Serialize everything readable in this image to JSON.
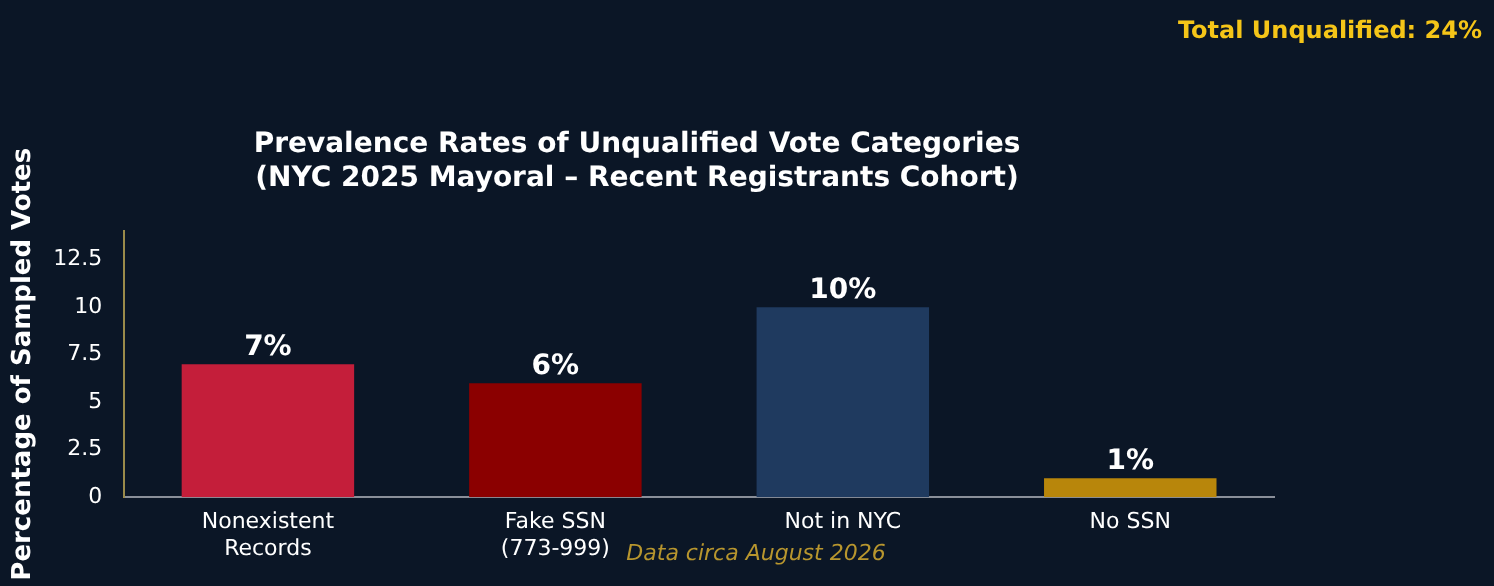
{
  "chart_data": {
    "type": "bar",
    "title": [
      "Prevalence Rates of Unqualified Vote Categories",
      "(NYC 2025 Mayoral – Recent Registrants Cohort)"
    ],
    "ylabel": "Percentage of Sampled Votes",
    "categories": [
      [
        "Nonexistent",
        "Records"
      ],
      [
        "Fake SSN",
        "(773-999)"
      ],
      "Not in NYC",
      "No SSN"
    ],
    "values": [
      7,
      6,
      10,
      1
    ],
    "colors": [
      "#c41e3a",
      "#8b0000",
      "#1f3a5f",
      "#b8860b"
    ],
    "value_labels": [
      "7%",
      "6%",
      "10%",
      "1%"
    ],
    "ylim": [
      0,
      14
    ],
    "yticks": [
      0,
      2.5,
      5,
      7.5,
      10,
      12.5
    ],
    "grid": false,
    "legend": false,
    "annotations": [
      "Total Unqualified: 24%",
      "Data circa August 2026"
    ]
  }
}
